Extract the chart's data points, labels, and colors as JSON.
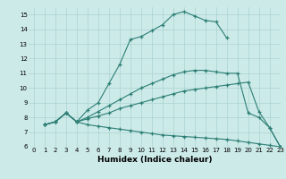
{
  "bg_color": "#cceae8",
  "grid_color": "#aad4d0",
  "line_color": "#2d7f75",
  "line1_x": [
    1,
    2,
    3,
    4,
    5,
    6,
    7,
    8,
    9,
    10,
    11,
    12,
    13,
    14,
    15,
    16,
    17,
    18
  ],
  "line1_y": [
    7.5,
    7.7,
    8.3,
    7.7,
    8.5,
    9.0,
    10.3,
    11.6,
    13.3,
    13.5,
    13.9,
    14.3,
    15.0,
    15.2,
    14.9,
    14.6,
    14.5,
    13.4
  ],
  "line2_x": [
    1,
    2,
    3,
    4,
    5,
    6,
    7,
    8,
    9,
    10,
    11,
    12,
    13,
    14,
    15,
    16,
    17,
    18,
    19,
    20,
    21,
    22,
    23
  ],
  "line2_y": [
    7.5,
    7.7,
    8.3,
    7.7,
    8.0,
    8.4,
    8.8,
    9.2,
    9.6,
    10.0,
    10.3,
    10.6,
    10.9,
    11.1,
    11.2,
    11.2,
    11.1,
    11.0,
    11.0,
    8.3,
    8.0,
    7.3,
    6.0
  ],
  "line3_x": [
    1,
    2,
    3,
    4,
    5,
    6,
    7,
    8,
    9,
    10,
    11,
    12,
    13,
    14,
    15,
    16,
    17,
    18,
    19,
    20,
    21,
    22,
    23
  ],
  "line3_y": [
    7.5,
    7.7,
    8.3,
    7.7,
    7.9,
    8.1,
    8.3,
    8.6,
    8.8,
    9.0,
    9.2,
    9.4,
    9.6,
    9.8,
    9.9,
    10.0,
    10.1,
    10.2,
    10.3,
    10.4,
    8.4,
    7.3,
    6.0
  ],
  "line4_x": [
    1,
    2,
    3,
    4,
    5,
    6,
    7,
    8,
    9,
    10,
    11,
    12,
    13,
    14,
    15,
    16,
    17,
    18,
    19,
    20,
    21,
    22,
    23
  ],
  "line4_y": [
    7.5,
    7.7,
    8.3,
    7.7,
    7.5,
    7.4,
    7.3,
    7.2,
    7.1,
    7.0,
    6.9,
    6.8,
    6.75,
    6.7,
    6.65,
    6.6,
    6.55,
    6.5,
    6.4,
    6.3,
    6.2,
    6.1,
    6.0
  ],
  "xlim": [
    -0.5,
    23
  ],
  "ylim": [
    6,
    15.5
  ],
  "yticks": [
    6,
    7,
    8,
    9,
    10,
    11,
    12,
    13,
    14,
    15
  ],
  "xticks": [
    0,
    1,
    2,
    3,
    4,
    5,
    6,
    7,
    8,
    9,
    10,
    11,
    12,
    13,
    14,
    15,
    16,
    17,
    18,
    19,
    20,
    21,
    22,
    23
  ],
  "xlabel": "Humidex (Indice chaleur)",
  "xlabel_fontsize": 6.5,
  "tick_fontsize": 5,
  "lw": 0.8,
  "ms": 3.5
}
